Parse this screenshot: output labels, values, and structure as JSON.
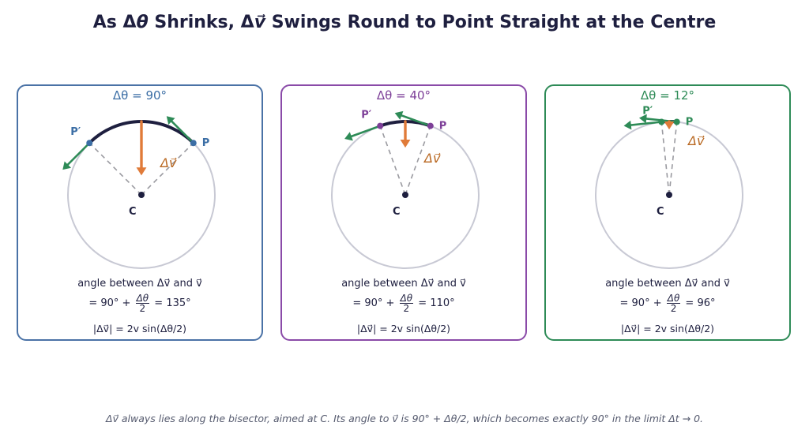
{
  "title": {
    "prefix": "As Δ",
    "theta": "θ",
    "mid": " Shrinks, Δ",
    "v": "v⃗",
    "suffix": " Swings Round to Point Straight at the Centre"
  },
  "panels": [
    {
      "heading": "Δθ = 90°",
      "color": "#3b6ea5",
      "label_p": "P",
      "label_p_prime": "P′",
      "label_c": "C",
      "label_dv": "Δv⃗",
      "angle_line": "angle between Δv⃗ and v⃗",
      "eq_prefix": "= 90° + ",
      "eq_num": "Δθ",
      "eq_den": "2",
      "eq_result": " = 135°",
      "magnitude": "|Δv⃗| = 2v sin(Δθ/2)"
    },
    {
      "heading": "Δθ = 40°",
      "color": "#7d3f98",
      "label_p": "P",
      "label_p_prime": "P′",
      "label_c": "C",
      "label_dv": "Δv⃗",
      "angle_line": "angle between Δv⃗ and v⃗",
      "eq_prefix": "= 90° + ",
      "eq_num": "Δθ",
      "eq_den": "2",
      "eq_result": " = 110°",
      "magnitude": "|Δv⃗| = 2v sin(Δθ/2)"
    },
    {
      "heading": "Δθ = 12°",
      "color": "#2e8b57",
      "label_p": "P",
      "label_p_prime": "P′",
      "label_c": "C",
      "label_dv": "Δv⃗",
      "angle_line": "angle between Δv⃗ and v⃗",
      "eq_prefix": "= 90° + ",
      "eq_num": "Δθ",
      "eq_den": "2",
      "eq_result": " = 96°",
      "magnitude": "|Δv⃗| = 2v sin(Δθ/2)"
    }
  ],
  "footnote": "Δv⃗ always lies along the bisector, aimed at C. Its angle to v⃗ is 90° + Δθ/2, which becomes exactly 90° in the limit Δt → 0.",
  "colors": {
    "velocity_arrow": "#2e8b57",
    "delta_v_arrow": "#e07b39",
    "delta_v_label": "#b8661f",
    "arc": "#1e1f3f",
    "circle": "#c8c9d4",
    "radius_dash": "#9a9aa0",
    "center_dot": "#1e1f3f"
  }
}
